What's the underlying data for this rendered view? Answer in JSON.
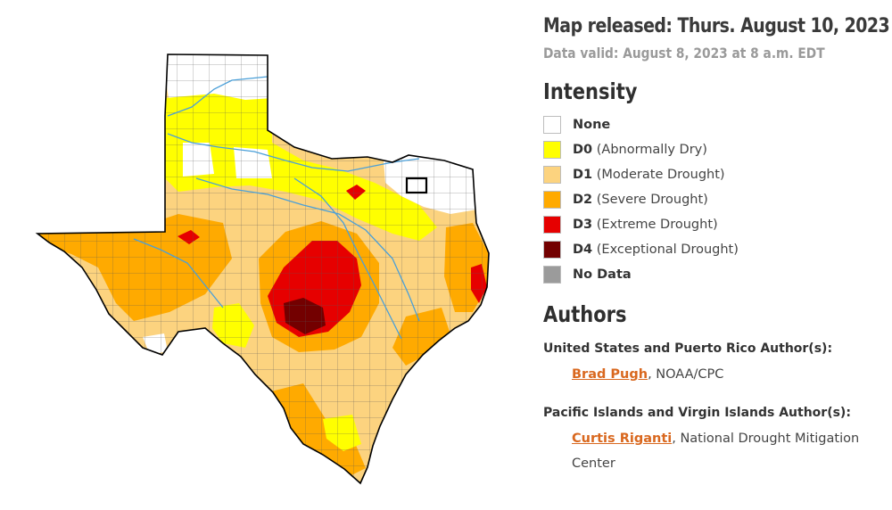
{
  "header": {
    "released": "Map released: Thurs. August 10, 2023",
    "valid": "Data valid: August 8, 2023 at 8 a.m. EDT"
  },
  "intensity": {
    "heading": "Intensity",
    "items": [
      {
        "code": "None",
        "desc": "",
        "color": "#ffffff"
      },
      {
        "code": "D0",
        "desc": "(Abnormally Dry)",
        "color": "#ffff00"
      },
      {
        "code": "D1",
        "desc": "(Moderate Drought)",
        "color": "#fcd37f"
      },
      {
        "code": "D2",
        "desc": "(Severe Drought)",
        "color": "#ffaa00"
      },
      {
        "code": "D3",
        "desc": "(Extreme Drought)",
        "color": "#e60000"
      },
      {
        "code": "D4",
        "desc": "(Exceptional Drought)",
        "color": "#730000"
      },
      {
        "code": "No Data",
        "desc": "",
        "color": "#9b9b9b"
      }
    ]
  },
  "authors": {
    "heading": "Authors",
    "us": {
      "title": "United States and Puerto Rico Author(s):",
      "name": "Brad Pugh",
      "affiliation": ", NOAA/CPC"
    },
    "pacific": {
      "title": "Pacific Islands and Virgin Islands Author(s):",
      "name": "Curtis Riganti",
      "affiliation": ", National Drought Mitigation Center"
    }
  },
  "map": {
    "colors": {
      "none": "#ffffff",
      "d0": "#ffff00",
      "d1": "#fcd37f",
      "d2": "#ffaa00",
      "d3": "#e60000",
      "d4": "#730000",
      "river": "#4a9fd8",
      "border": "#000000",
      "county": "#5a5a5a"
    }
  }
}
